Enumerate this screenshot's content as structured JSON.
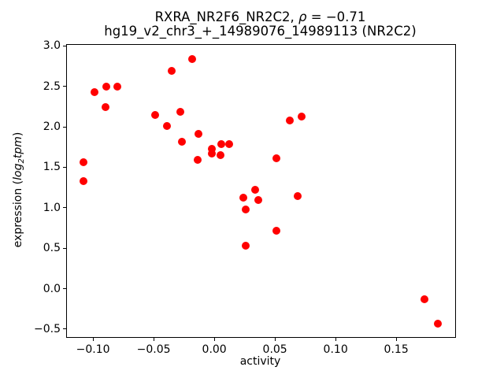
{
  "figure": {
    "title_line1_prefix": "RXRA_NR2F6_NR2C2, ",
    "title_rho": "ρ",
    "title_line1_suffix": " = −0.71",
    "title_line2": "hg19_v2_chr3_+_14989076_14989113 (NR2C2)",
    "xlabel": "activity",
    "ylabel_prefix": "expression (",
    "ylabel_log": "log",
    "ylabel_sub": "2",
    "ylabel_tpm": "tpm",
    "ylabel_suffix": ")"
  },
  "chart_data": {
    "type": "scatter",
    "title": "RXRA_NR2F6_NR2C2, ρ = −0.71",
    "subtitle": "hg19_v2_chr3_+_14989076_14989113 (NR2C2)",
    "xlabel": "activity",
    "ylabel": "expression (log2tpm)",
    "rho": -0.71,
    "marker_color": "#ff0000",
    "axis_color": "#000000",
    "grid": false,
    "legend": "none",
    "xlim": [
      -0.1215,
      0.1986
    ],
    "ylim": [
      -0.598,
      3.013
    ],
    "xticks": [
      {
        "value": -0.1,
        "label": "−0.10"
      },
      {
        "value": -0.05,
        "label": "−0.05"
      },
      {
        "value": 0.0,
        "label": "0.00"
      },
      {
        "value": 0.05,
        "label": "0.05"
      },
      {
        "value": 0.1,
        "label": "0.10"
      },
      {
        "value": 0.15,
        "label": "0.15"
      }
    ],
    "yticks": [
      {
        "value": 3.0,
        "label": "3.0"
      },
      {
        "value": 2.5,
        "label": "2.5"
      },
      {
        "value": 2.0,
        "label": "2.0"
      },
      {
        "value": 1.5,
        "label": "1.5"
      },
      {
        "value": 1.0,
        "label": "1.0"
      },
      {
        "value": 0.5,
        "label": "0.5"
      },
      {
        "value": 0.0,
        "label": "0.0"
      },
      {
        "value": -0.5,
        "label": "−0.5"
      }
    ],
    "points": [
      [
        -0.108,
        1.56
      ],
      [
        -0.108,
        1.33
      ],
      [
        -0.099,
        2.43
      ],
      [
        -0.09,
        2.24
      ],
      [
        -0.089,
        2.5
      ],
      [
        -0.08,
        2.5
      ],
      [
        -0.049,
        2.15
      ],
      [
        -0.039,
        2.01
      ],
      [
        -0.035,
        2.69
      ],
      [
        -0.028,
        2.19
      ],
      [
        -0.027,
        1.82
      ],
      [
        -0.018,
        2.84
      ],
      [
        -0.014,
        1.59
      ],
      [
        -0.013,
        1.91
      ],
      [
        -0.002,
        1.73
      ],
      [
        -0.002,
        1.67
      ],
      [
        0.005,
        1.65
      ],
      [
        0.006,
        1.79
      ],
      [
        0.012,
        1.79
      ],
      [
        0.024,
        1.12
      ],
      [
        0.026,
        0.98
      ],
      [
        0.026,
        0.53
      ],
      [
        0.034,
        1.22
      ],
      [
        0.036,
        1.1
      ],
      [
        0.051,
        1.61
      ],
      [
        0.051,
        0.72
      ],
      [
        0.062,
        2.08
      ],
      [
        0.069,
        1.14
      ],
      [
        0.072,
        2.13
      ],
      [
        0.173,
        -0.13
      ],
      [
        0.184,
        -0.43
      ]
    ]
  }
}
